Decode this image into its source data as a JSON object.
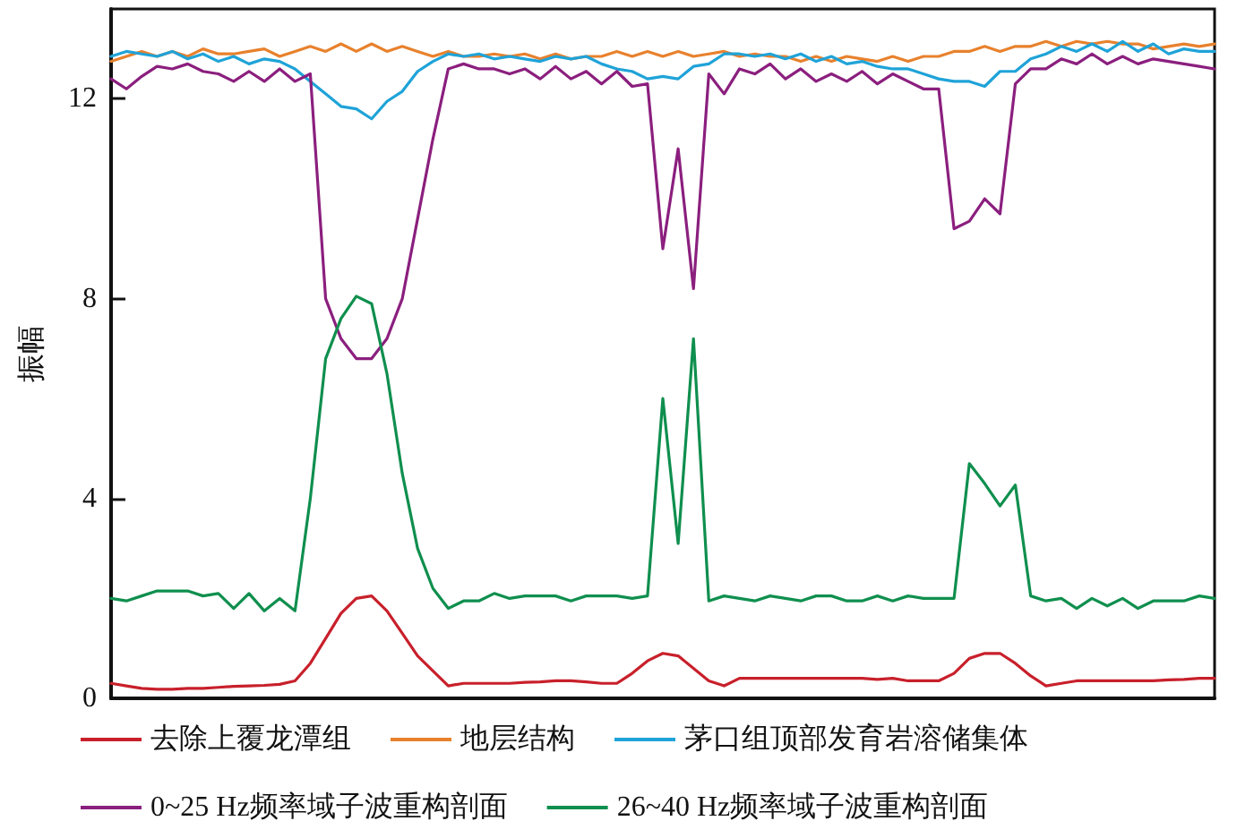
{
  "chart_data": {
    "type": "line",
    "ylabel": "振幅",
    "ylim": [
      0,
      13.8
    ],
    "yticks": [
      0,
      4,
      8,
      12
    ],
    "grid": false,
    "legend": "bottom",
    "marker": "none",
    "line_style": "solid",
    "categories": [
      null,
      null,
      null,
      null,
      null,
      null,
      null,
      null,
      null,
      null,
      null,
      null,
      null,
      null,
      null,
      null,
      null,
      null,
      null,
      null,
      null,
      null,
      null,
      null,
      null,
      null,
      null,
      null,
      null,
      null,
      null,
      null,
      null,
      null,
      null,
      null,
      null,
      null,
      null,
      null,
      null,
      null,
      null,
      null,
      null,
      null,
      null,
      null,
      null,
      null,
      null,
      null,
      null,
      null,
      null,
      null,
      null,
      null,
      null,
      null,
      null,
      null,
      null,
      null,
      null,
      null,
      null,
      null,
      null,
      null,
      null,
      null,
      null
    ],
    "series": [
      {
        "name": "去除上覆龙潭组",
        "color": "#c8202b",
        "values": [
          0.3,
          0.25,
          0.2,
          0.18,
          0.18,
          0.2,
          0.2,
          0.22,
          0.24,
          0.25,
          0.26,
          0.28,
          0.35,
          0.7,
          1.2,
          1.7,
          2.0,
          2.05,
          1.75,
          1.3,
          0.85,
          0.55,
          0.25,
          0.3,
          0.3,
          0.3,
          0.3,
          0.32,
          0.33,
          0.35,
          0.35,
          0.33,
          0.3,
          0.3,
          0.5,
          0.75,
          0.9,
          0.85,
          0.6,
          0.35,
          0.25,
          0.4,
          0.4,
          0.4,
          0.4,
          0.4,
          0.4,
          0.4,
          0.4,
          0.4,
          0.38,
          0.4,
          0.35,
          0.35,
          0.35,
          0.5,
          0.8,
          0.9,
          0.9,
          0.7,
          0.45,
          0.25,
          0.3,
          0.35,
          0.35,
          0.35,
          0.35,
          0.35,
          0.35,
          0.37,
          0.38,
          0.4,
          0.4
        ]
      },
      {
        "name": "地层结构",
        "color": "#e8812d",
        "values": [
          12.75,
          12.85,
          12.95,
          12.85,
          12.95,
          12.85,
          13.0,
          12.9,
          12.9,
          12.95,
          13.0,
          12.85,
          12.95,
          13.05,
          12.95,
          13.1,
          12.95,
          13.1,
          12.95,
          13.05,
          12.95,
          12.85,
          12.95,
          12.85,
          12.85,
          12.9,
          12.85,
          12.9,
          12.8,
          12.9,
          12.8,
          12.85,
          12.85,
          12.95,
          12.85,
          12.95,
          12.85,
          12.95,
          12.85,
          12.9,
          12.95,
          12.85,
          12.9,
          12.85,
          12.85,
          12.75,
          12.85,
          12.75,
          12.85,
          12.8,
          12.75,
          12.85,
          12.75,
          12.85,
          12.85,
          12.95,
          12.95,
          13.05,
          12.95,
          13.05,
          13.05,
          13.15,
          13.05,
          13.15,
          13.1,
          13.15,
          13.1,
          13.1,
          13.0,
          13.05,
          13.1,
          13.05,
          13.1
        ]
      },
      {
        "name": "茅口组顶部发育岩溶储集体",
        "color": "#1fa3d8",
        "values": [
          12.85,
          12.95,
          12.9,
          12.85,
          12.95,
          12.8,
          12.9,
          12.75,
          12.85,
          12.7,
          12.8,
          12.75,
          12.6,
          12.35,
          12.1,
          11.85,
          11.8,
          11.6,
          11.95,
          12.15,
          12.55,
          12.75,
          12.9,
          12.85,
          12.9,
          12.8,
          12.85,
          12.8,
          12.75,
          12.85,
          12.8,
          12.85,
          12.7,
          12.6,
          12.55,
          12.4,
          12.45,
          12.4,
          12.65,
          12.7,
          12.9,
          12.9,
          12.85,
          12.9,
          12.8,
          12.9,
          12.75,
          12.85,
          12.7,
          12.75,
          12.65,
          12.6,
          12.6,
          12.5,
          12.4,
          12.35,
          12.35,
          12.25,
          12.55,
          12.55,
          12.8,
          12.9,
          13.05,
          12.95,
          13.1,
          12.95,
          13.15,
          12.95,
          13.1,
          12.9,
          13.0,
          12.95,
          12.95
        ]
      },
      {
        "name": "0~25 Hz频率域子波重构剖面",
        "color": "#8b1f7e",
        "values": [
          12.4,
          12.2,
          12.45,
          12.65,
          12.6,
          12.7,
          12.55,
          12.5,
          12.35,
          12.55,
          12.35,
          12.6,
          12.35,
          12.5,
          8.0,
          7.2,
          6.8,
          6.8,
          7.2,
          8.0,
          9.6,
          11.2,
          12.6,
          12.7,
          12.6,
          12.6,
          12.5,
          12.6,
          12.4,
          12.65,
          12.4,
          12.55,
          12.3,
          12.55,
          12.25,
          12.3,
          9.0,
          11.0,
          8.2,
          12.5,
          12.1,
          12.6,
          12.5,
          12.7,
          12.4,
          12.6,
          12.35,
          12.5,
          12.35,
          12.55,
          12.3,
          12.5,
          12.35,
          12.2,
          12.2,
          9.4,
          9.55,
          10.0,
          9.7,
          12.3,
          12.6,
          12.6,
          12.8,
          12.7,
          12.9,
          12.7,
          12.85,
          12.7,
          12.8,
          12.75,
          12.7,
          12.65,
          12.6
        ]
      },
      {
        "name": "26~40 Hz频率域子波重构剖面",
        "color": "#0f8f4e",
        "values": [
          2.0,
          1.95,
          2.05,
          2.15,
          2.15,
          2.15,
          2.05,
          2.1,
          1.8,
          2.1,
          1.75,
          2.0,
          1.75,
          4.0,
          6.8,
          7.6,
          8.05,
          7.9,
          6.5,
          4.5,
          3.0,
          2.2,
          1.8,
          1.95,
          1.95,
          2.1,
          2.0,
          2.05,
          2.05,
          2.05,
          1.95,
          2.05,
          2.05,
          2.05,
          2.0,
          2.05,
          6.0,
          3.1,
          7.2,
          1.95,
          2.05,
          2.0,
          1.95,
          2.05,
          2.0,
          1.95,
          2.05,
          2.05,
          1.95,
          1.95,
          2.05,
          1.95,
          2.05,
          2.0,
          2.0,
          2.0,
          4.7,
          4.3,
          3.85,
          4.27,
          2.05,
          1.95,
          2.0,
          1.8,
          2.0,
          1.85,
          2.0,
          1.8,
          1.95,
          1.95,
          1.95,
          2.05,
          2.0
        ]
      }
    ]
  }
}
